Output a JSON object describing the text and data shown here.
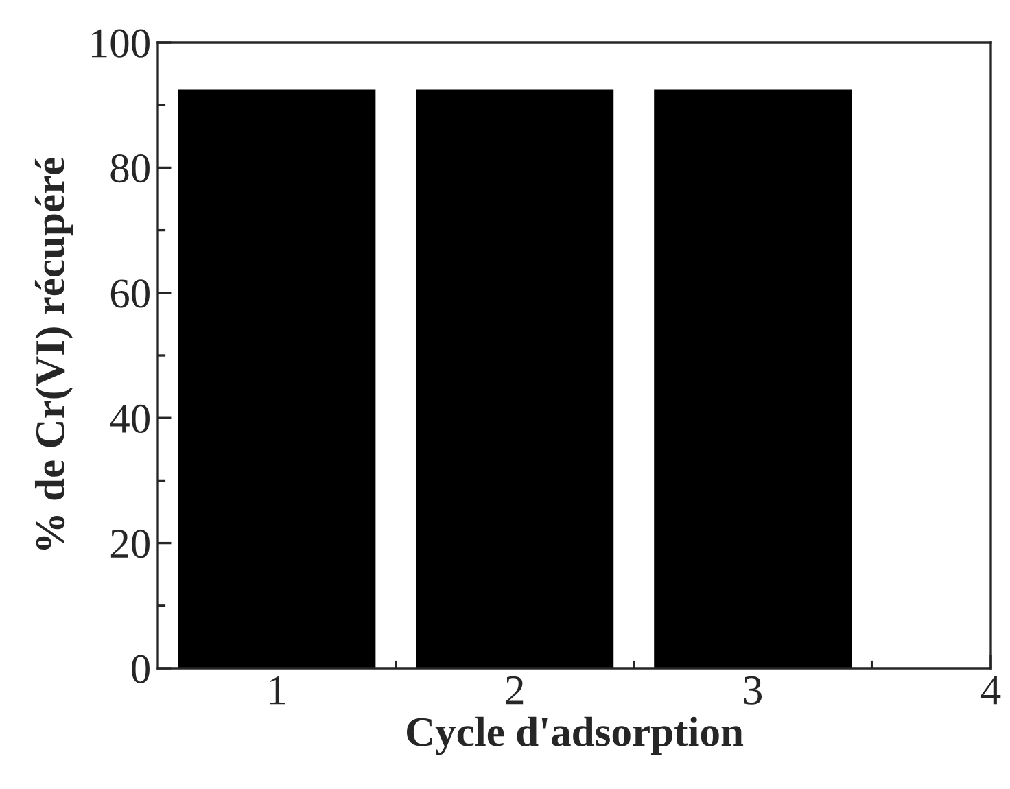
{
  "chart_data": {
    "type": "bar",
    "xlabel": "Cycle d'adsorption",
    "ylabel": "% de Cr(VI) récupéré",
    "x": [
      1,
      2,
      3
    ],
    "values": [
      92.5,
      92.5,
      92.5
    ],
    "color": "#000000",
    "xlim": [
      0.5,
      4
    ],
    "xticks": [
      1,
      2,
      3,
      4
    ],
    "ylim": [
      0,
      100
    ],
    "yticks": [
      0,
      20,
      40,
      60,
      80,
      100
    ],
    "grid": false,
    "legend": false
  }
}
